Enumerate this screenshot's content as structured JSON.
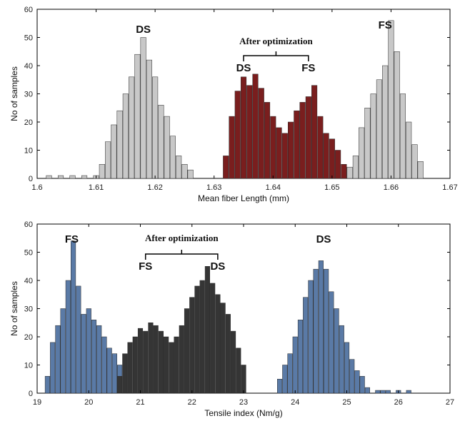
{
  "chart_data": [
    {
      "type": "histogram",
      "xlabel": "Mean fiber Length (mm)",
      "ylabel": "No of samples",
      "xlim": [
        1.6,
        1.67
      ],
      "ylim": [
        0,
        60
      ],
      "xticks": [
        "1.6",
        "1.61",
        "1.62",
        "1.63",
        "1.64",
        "1.65",
        "1.66",
        "1.67"
      ],
      "yticks": [
        "0",
        "10",
        "20",
        "30",
        "40",
        "50",
        "60"
      ],
      "annotations": {
        "left_label": "DS",
        "right_label": "FS",
        "bracket_title": "After optimization",
        "bracket_left": "DS",
        "bracket_right": "FS"
      },
      "series": [
        {
          "color": "#c8c8c8",
          "x": [
            1.602,
            1.604,
            1.606,
            1.608,
            1.61,
            1.611,
            1.612,
            1.613,
            1.614,
            1.615,
            1.616,
            1.617,
            1.618,
            1.619,
            1.62,
            1.621,
            1.622,
            1.623,
            1.624,
            1.625,
            1.626,
            1.653,
            1.654,
            1.655,
            1.656,
            1.657,
            1.658,
            1.659,
            1.66,
            1.661,
            1.662,
            1.663,
            1.664,
            1.665
          ],
          "values": [
            1,
            1,
            1,
            1,
            1,
            5,
            13,
            19,
            24,
            30,
            36,
            44,
            50,
            42,
            36,
            26,
            22,
            15,
            8,
            5,
            3,
            4,
            8,
            18,
            25,
            30,
            35,
            40,
            56,
            45,
            30,
            20,
            12,
            6
          ]
        },
        {
          "color": "#7a1e1e",
          "x": [
            1.632,
            1.633,
            1.634,
            1.635,
            1.636,
            1.637,
            1.638,
            1.639,
            1.64,
            1.641,
            1.642,
            1.643,
            1.644,
            1.645,
            1.646,
            1.647,
            1.648,
            1.649,
            1.65,
            1.651,
            1.652
          ],
          "values": [
            8,
            22,
            31,
            36,
            33,
            37,
            32,
            27,
            22,
            18,
            16,
            20,
            24,
            27,
            29,
            33,
            22,
            16,
            14,
            10,
            5
          ]
        }
      ]
    },
    {
      "type": "histogram",
      "xlabel": "Tensile index (Nm/g)",
      "ylabel": "No of samples",
      "xlim": [
        19,
        27
      ],
      "ylim": [
        0,
        60
      ],
      "xticks": [
        "19",
        "20",
        "21",
        "22",
        "23",
        "24",
        "25",
        "26",
        "27"
      ],
      "yticks": [
        "0",
        "10",
        "20",
        "30",
        "40",
        "50",
        "60"
      ],
      "annotations": {
        "left_label": "FS",
        "right_label": "DS",
        "bracket_title": "After optimization",
        "bracket_left": "FS",
        "bracket_right": "DS"
      },
      "series": [
        {
          "color": "#5a7aa6",
          "x": [
            19.2,
            19.3,
            19.4,
            19.5,
            19.6,
            19.7,
            19.8,
            19.9,
            20.0,
            20.1,
            20.2,
            20.3,
            20.4,
            20.5,
            20.6,
            23.7,
            23.8,
            23.9,
            24.0,
            24.1,
            24.2,
            24.3,
            24.4,
            24.5,
            24.6,
            24.7,
            24.8,
            24.9,
            25.0,
            25.1,
            25.2,
            25.3,
            25.4,
            25.6,
            25.7,
            25.8,
            26.0,
            26.2
          ],
          "values": [
            6,
            18,
            24,
            30,
            40,
            54,
            38,
            28,
            30,
            26,
            24,
            20,
            16,
            14,
            10,
            5,
            10,
            14,
            20,
            26,
            34,
            40,
            44,
            47,
            44,
            36,
            30,
            24,
            18,
            12,
            8,
            6,
            2,
            1,
            1,
            1,
            1,
            1
          ]
        },
        {
          "color": "#353535",
          "x": [
            20.6,
            20.7,
            20.8,
            20.9,
            21.0,
            21.1,
            21.2,
            21.3,
            21.4,
            21.5,
            21.6,
            21.7,
            21.8,
            21.9,
            22.0,
            22.1,
            22.2,
            22.3,
            22.4,
            22.5,
            22.6,
            22.7,
            22.8,
            22.9,
            23.0
          ],
          "values": [
            6,
            14,
            18,
            20,
            23,
            22,
            25,
            24,
            22,
            20,
            18,
            20,
            24,
            30,
            34,
            38,
            40,
            45,
            39,
            35,
            32,
            28,
            22,
            16,
            10
          ]
        }
      ]
    }
  ]
}
